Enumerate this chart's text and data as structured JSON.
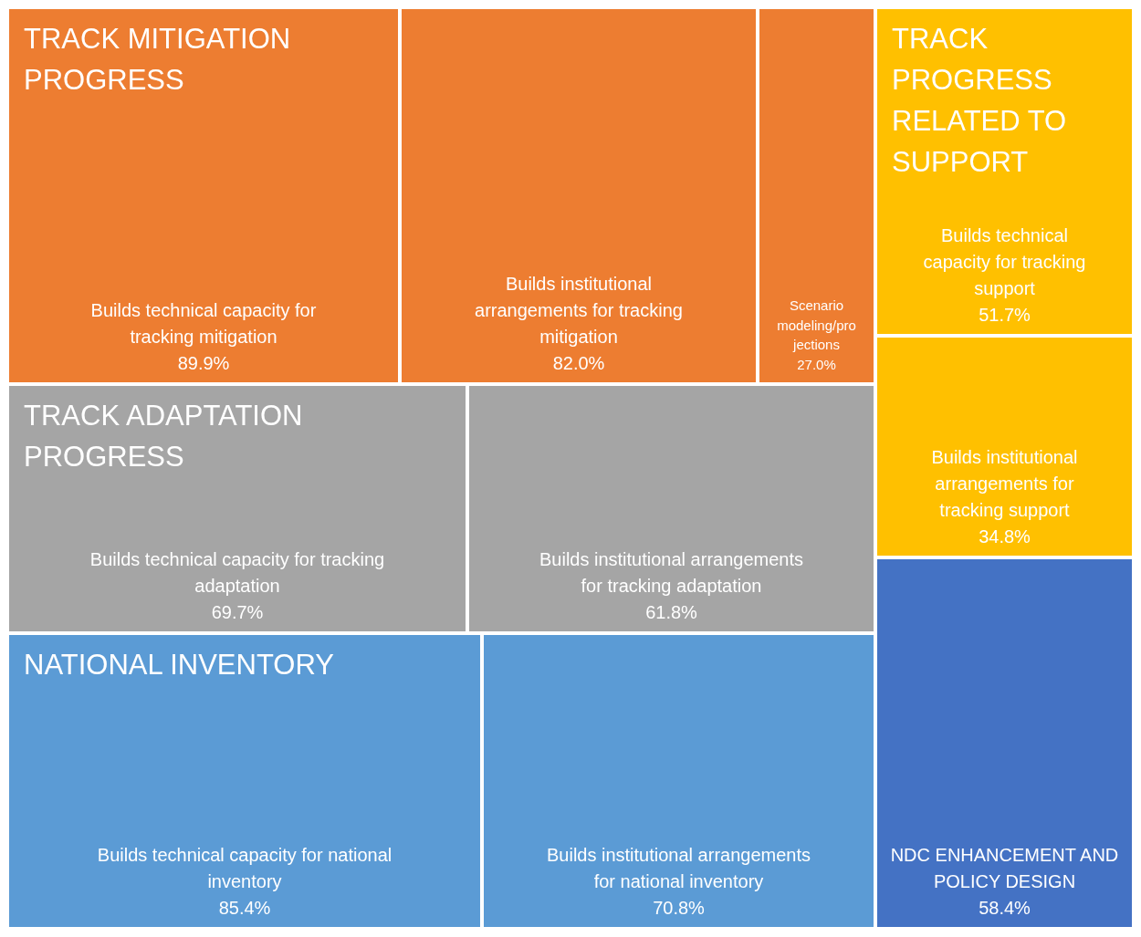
{
  "chart_data": {
    "type": "other",
    "categories": [
      "Builds technical capacity for tracking mitigation",
      "Builds institutional arrangements for tracking mitigation",
      "Scenario modeling/projections",
      "Builds technical capacity for tracking adaptation",
      "Builds institutional arrangements for tracking adaptation",
      "Builds technical capacity for national inventory",
      "Builds institutional arrangements for national inventory",
      "Builds technical capacity for tracking support",
      "Builds institutional arrangements for tracking support",
      "NDC ENHANCEMENT AND POLICY DESIGN"
    ],
    "series": [
      {
        "name": "TRACK MITIGATION PROGRESS",
        "color": "#ed7d31",
        "values": [
          89.9,
          82.0,
          27.0,
          null,
          null,
          null,
          null,
          null,
          null,
          null
        ],
        "value_labels": [
          "89.9%",
          "82.0%",
          "27.0%",
          null,
          null,
          null,
          null,
          null,
          null,
          null
        ]
      },
      {
        "name": "TRACK ADAPTATION PROGRESS",
        "color": "#a5a5a5",
        "values": [
          null,
          null,
          null,
          69.7,
          61.8,
          null,
          null,
          null,
          null,
          null
        ],
        "value_labels": [
          null,
          null,
          null,
          "69.7%",
          "61.8%",
          null,
          null,
          null,
          null,
          null
        ]
      },
      {
        "name": "NATIONAL INVENTORY",
        "color": "#5b9bd5",
        "values": [
          null,
          null,
          null,
          null,
          null,
          85.4,
          70.8,
          null,
          null,
          null
        ],
        "value_labels": [
          null,
          null,
          null,
          null,
          null,
          "85.4%",
          "70.8%",
          null,
          null,
          null
        ]
      },
      {
        "name": "TRACK PROGRESS RELATED TO SUPPORT",
        "color": "#ffc000",
        "values": [
          null,
          null,
          null,
          null,
          null,
          null,
          null,
          51.7,
          34.8,
          null
        ],
        "value_labels": [
          null,
          null,
          null,
          null,
          null,
          null,
          null,
          "51.7%",
          "34.8%",
          null
        ]
      },
      {
        "color": "#4472c4",
        "values": [
          null,
          null,
          null,
          null,
          null,
          null,
          null,
          null,
          null,
          58.4
        ],
        "value_labels": [
          null,
          null,
          null,
          null,
          null,
          null,
          null,
          null,
          null,
          "58.4%"
        ]
      }
    ]
  }
}
